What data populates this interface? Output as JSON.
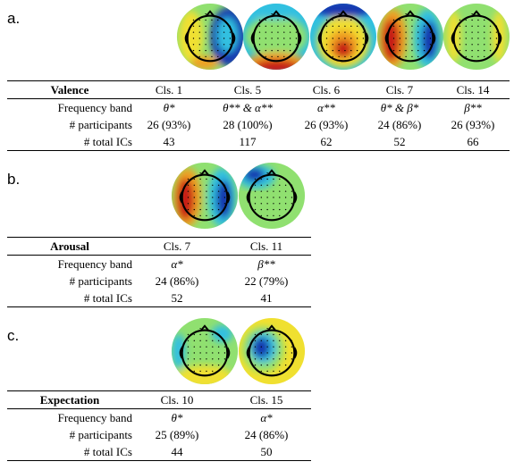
{
  "panels": [
    {
      "label": "a.",
      "title": "Valence",
      "row_labels": [
        "Frequency band",
        "# participants",
        "# total ICs"
      ],
      "columns": [
        {
          "header": "Cls. 1",
          "band": "θ*",
          "participants": "26 (93%)",
          "ics": "43"
        },
        {
          "header": "Cls. 5",
          "band": "θ** & α**",
          "participants": "28 (100%)",
          "ics": "117"
        },
        {
          "header": "Cls. 6",
          "band": "α**",
          "participants": "26 (93%)",
          "ics": "62"
        },
        {
          "header": "Cls. 7",
          "band": "θ* & β*",
          "participants": "24 (86%)",
          "ics": "52"
        },
        {
          "header": "Cls. 14",
          "band": "β**",
          "participants": "26 (93%)",
          "ics": "66"
        }
      ]
    },
    {
      "label": "b.",
      "title": "Arousal",
      "row_labels": [
        "Frequency band",
        "# participants",
        "# total ICs"
      ],
      "columns": [
        {
          "header": "Cls. 7",
          "band": "α*",
          "participants": "24 (86%)",
          "ics": "52"
        },
        {
          "header": "Cls. 11",
          "band": "β**",
          "participants": "22 (79%)",
          "ics": "41"
        }
      ]
    },
    {
      "label": "c.",
      "title": "Expectation",
      "row_labels": [
        "Frequency band",
        "# participants",
        "# total ICs"
      ],
      "columns": [
        {
          "header": "Cls. 10",
          "band": "θ*",
          "participants": "25 (89%)",
          "ics": "44"
        },
        {
          "header": "Cls. 15",
          "band": "α*",
          "participants": "24 (86%)",
          "ics": "50"
        }
      ]
    }
  ],
  "colors": {
    "hot": "#c81e14",
    "warm": "#f0a020",
    "yellow": "#f0e030",
    "neutral": "#90e070",
    "cool": "#30c0e0",
    "cold": "#1838b0"
  }
}
